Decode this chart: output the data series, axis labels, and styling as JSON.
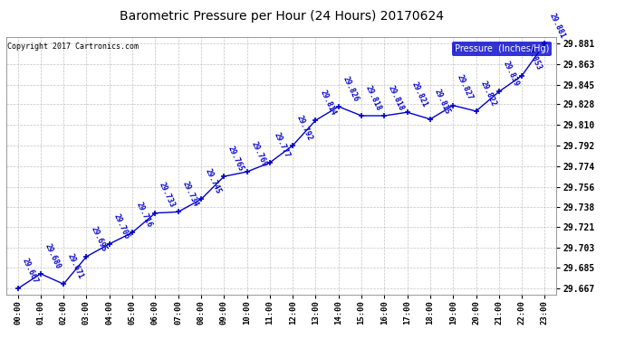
{
  "title": "Barometric Pressure per Hour (24 Hours) 20170624",
  "copyright": "Copyright 2017 Cartronics.com",
  "legend_label": "Pressure  (Inches/Hg)",
  "x_labels": [
    "00:00",
    "01:00",
    "02:00",
    "03:00",
    "04:00",
    "05:00",
    "06:00",
    "07:00",
    "08:00",
    "09:00",
    "10:00",
    "11:00",
    "12:00",
    "13:00",
    "14:00",
    "15:00",
    "16:00",
    "17:00",
    "18:00",
    "19:00",
    "20:00",
    "21:00",
    "22:00",
    "23:00"
  ],
  "values": [
    29.667,
    29.68,
    29.671,
    29.695,
    29.706,
    29.716,
    29.733,
    29.734,
    29.745,
    29.765,
    29.769,
    29.777,
    29.792,
    29.814,
    29.826,
    29.818,
    29.818,
    29.821,
    29.815,
    29.827,
    29.822,
    29.839,
    29.853,
    29.881
  ],
  "yticks": [
    29.667,
    29.685,
    29.703,
    29.721,
    29.738,
    29.756,
    29.774,
    29.792,
    29.81,
    29.828,
    29.845,
    29.863,
    29.881
  ],
  "ylim_min": 29.6615,
  "ylim_max": 29.8865,
  "line_color": "#0000cc",
  "bg_color": "#ffffff",
  "grid_color": "#bbbbbb",
  "title_fontsize": 10,
  "label_fontsize": 6.5,
  "annot_fontsize": 6.0
}
